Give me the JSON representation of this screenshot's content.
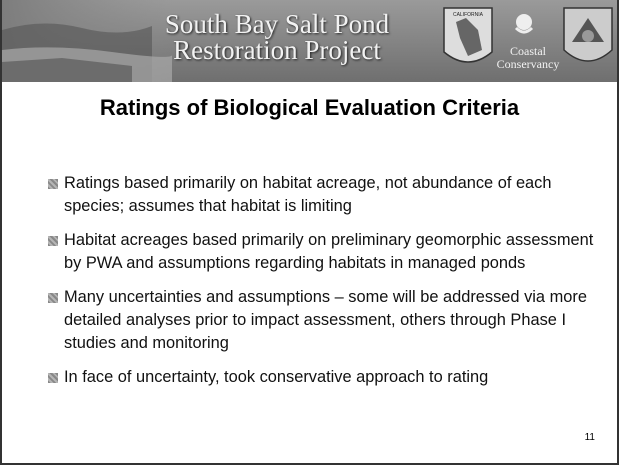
{
  "header": {
    "title_lines": [
      "South Bay Salt Pond",
      "Restoration Project"
    ],
    "california_badge": "CALIFORNIA",
    "conservancy_logo": [
      "Coastal",
      "Conservancy"
    ]
  },
  "slide": {
    "title": "Ratings of Biological Evaluation Criteria",
    "bullets": [
      "Ratings based primarily on habitat acreage, not abundance of each species; assumes that habitat is limiting",
      "Habitat acreages based primarily on preliminary geomorphic assessment by PWA and assumptions regarding habitats in managed ponds",
      "Many uncertainties and assumptions – some will be addressed via more detailed analyses prior to impact assessment, others through Phase I studies and monitoring",
      "In face of uncertainty, took conservative approach to rating"
    ],
    "page_number": "11"
  }
}
